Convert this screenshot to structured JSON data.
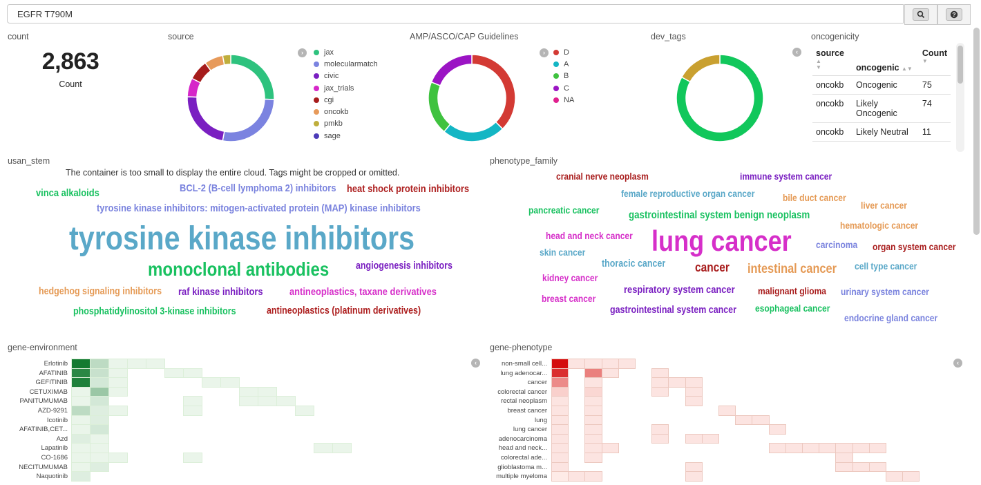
{
  "search": {
    "value": "EGFR T790M"
  },
  "toolbar": {
    "search_icon": "search-icon",
    "help_icon": "help-icon"
  },
  "panels": {
    "count": {
      "title": "count",
      "value": "2,863",
      "label": "Count"
    },
    "source": {
      "title": "source",
      "legend": [
        {
          "label": "jax",
          "color": "#2ec27e"
        },
        {
          "label": "molecularmatch",
          "color": "#7b83e0"
        },
        {
          "label": "civic",
          "color": "#7a1fc1"
        },
        {
          "label": "jax_trials",
          "color": "#d627c9"
        },
        {
          "label": "cgi",
          "color": "#a61c1c"
        },
        {
          "label": "oncokb",
          "color": "#e79a5a"
        },
        {
          "label": "pmkb",
          "color": "#bfae3c"
        },
        {
          "label": "sage",
          "color": "#4c3bb8"
        }
      ],
      "slices": [
        {
          "label": "jax",
          "value": 0.255,
          "color": "#2ec27e"
        },
        {
          "label": "molecularmatch",
          "value": 0.275,
          "color": "#7b83e0"
        },
        {
          "label": "civic",
          "value": 0.225,
          "color": "#7a1fc1"
        },
        {
          "label": "jax_trials",
          "value": 0.07,
          "color": "#d627c9"
        },
        {
          "label": "cgi",
          "value": 0.075,
          "color": "#a61c1c"
        },
        {
          "label": "oncokb",
          "value": 0.07,
          "color": "#e79a5a"
        },
        {
          "label": "pmkb",
          "value": 0.03,
          "color": "#bfae3c"
        }
      ]
    },
    "guidelines": {
      "title": "AMP/ASCO/CAP Guidelines",
      "legend": [
        {
          "label": "D",
          "color": "#d33a34"
        },
        {
          "label": "A",
          "color": "#14b6c4"
        },
        {
          "label": "B",
          "color": "#3fc23f"
        },
        {
          "label": "C",
          "color": "#9b14c4"
        },
        {
          "label": "NA",
          "color": "#e0208e"
        }
      ],
      "slices": [
        {
          "label": "D",
          "value": 0.375,
          "color": "#d33a34"
        },
        {
          "label": "A",
          "value": 0.235,
          "color": "#14b6c4"
        },
        {
          "label": "B",
          "value": 0.2,
          "color": "#3fc23f"
        },
        {
          "label": "C",
          "value": 0.19,
          "color": "#9b14c4"
        }
      ]
    },
    "dev_tags": {
      "title": "dev_tags",
      "slices": [
        {
          "label": "green",
          "value": 0.83,
          "color": "#11c75b"
        },
        {
          "label": "gold",
          "value": 0.17,
          "color": "#c9a030"
        }
      ]
    },
    "oncogenicity": {
      "title": "oncogenicity",
      "headers": [
        "source",
        "oncogenic",
        "Count"
      ],
      "rows": [
        [
          "oncokb",
          "Oncogenic",
          "75"
        ],
        [
          "oncokb",
          "Likely Oncogenic",
          "74"
        ],
        [
          "oncokb",
          "Likely Neutral",
          "11"
        ]
      ]
    },
    "usan_stem": {
      "title": "usan_stem",
      "message": "The container is too small to display the entire cloud. Tags might be cropped or omitted.",
      "tags": [
        {
          "text": "vinca alkaloids",
          "color": "#19c160"
        },
        {
          "text": "BCL-2 (B-cell lymphoma 2) inhibitors",
          "color": "#7a83de"
        },
        {
          "text": "heat shock protein inhibitors",
          "color": "#ad1f1f"
        },
        {
          "text": "tyrosine kinase inhibitors: mitogen-activated protein (MAP) kinase inhibitors",
          "color": "#7a83de"
        },
        {
          "text": "tyrosine kinase inhibitors",
          "color": "#5aa8c8"
        },
        {
          "text": "monoclonal antibodies",
          "color": "#19c160"
        },
        {
          "text": "angiogenesis inhibitors",
          "color": "#7a1fc1"
        },
        {
          "text": "hedgehog signaling inhibitors",
          "color": "#e59a55"
        },
        {
          "text": "raf kinase inhibitors",
          "color": "#7a1fc1"
        },
        {
          "text": "antineoplastics, taxane derivatives",
          "color": "#d62fc9"
        },
        {
          "text": "phosphatidylinositol 3-kinase inhibitors",
          "color": "#19c160"
        },
        {
          "text": "antineoplastics (platinum derivatives)",
          "color": "#ad1f1f"
        }
      ]
    },
    "phenotype_family": {
      "title": "phenotype_family",
      "tags": [
        {
          "text": "cranial nerve neoplasm",
          "color": "#a81c1c"
        },
        {
          "text": "immune system cancer",
          "color": "#7a1fc1"
        },
        {
          "text": "female reproductive organ cancer",
          "color": "#5aa8c8"
        },
        {
          "text": "bile duct cancer",
          "color": "#e59a55"
        },
        {
          "text": "liver cancer",
          "color": "#e59a55"
        },
        {
          "text": "pancreatic cancer",
          "color": "#19c160"
        },
        {
          "text": "gastrointestinal system benign neoplasm",
          "color": "#19c160"
        },
        {
          "text": "hematologic cancer",
          "color": "#e59a55"
        },
        {
          "text": "head and neck cancer",
          "color": "#d62fc9"
        },
        {
          "text": "lung cancer",
          "color": "#d62fc9"
        },
        {
          "text": "carcinoma",
          "color": "#7a83de"
        },
        {
          "text": "organ system cancer",
          "color": "#a81c1c"
        },
        {
          "text": "skin cancer",
          "color": "#5aa8c8"
        },
        {
          "text": "thoracic cancer",
          "color": "#5aa8c8"
        },
        {
          "text": "cancer",
          "color": "#a81c1c"
        },
        {
          "text": "intestinal cancer",
          "color": "#e59a55"
        },
        {
          "text": "cell type cancer",
          "color": "#5aa8c8"
        },
        {
          "text": "kidney cancer",
          "color": "#d62fc9"
        },
        {
          "text": "respiratory system cancer",
          "color": "#7a1fc1"
        },
        {
          "text": "malignant glioma",
          "color": "#a81c1c"
        },
        {
          "text": "urinary system cancer",
          "color": "#7a83de"
        },
        {
          "text": "breast cancer",
          "color": "#d62fc9"
        },
        {
          "text": "gastrointestinal system cancer",
          "color": "#7a1fc1"
        },
        {
          "text": "esophageal cancer",
          "color": "#19c160"
        },
        {
          "text": "endocrine gland cancer",
          "color": "#7a83de"
        }
      ]
    },
    "gene_environment": {
      "title": "gene-environment",
      "rows": [
        "Erlotinib",
        "AFATINIB",
        "GEFITINIB",
        "CETUXIMAB",
        "PANITUMUMAB",
        "AZD-9291",
        "Icotinib",
        "AFATINIB,CET...",
        "Azd",
        "Lapatinib",
        "CO-1686",
        "NECITUMUMAB",
        "Naquotinib"
      ],
      "cells": [
        [
          1.0,
          0.25,
          0.05,
          0.05,
          0.05,
          0,
          0,
          0,
          0,
          0,
          0,
          0,
          0,
          0,
          0
        ],
        [
          0.9,
          0.2,
          0.05,
          0,
          0,
          0.05,
          0.05,
          0,
          0,
          0,
          0,
          0,
          0,
          0,
          0
        ],
        [
          0.95,
          0.15,
          0.05,
          0,
          0,
          0,
          0,
          0.05,
          0.05,
          0,
          0,
          0,
          0,
          0,
          0
        ],
        [
          0.05,
          0.4,
          0.05,
          0,
          0,
          0,
          0,
          0,
          0,
          0.05,
          0.05,
          0,
          0,
          0,
          0
        ],
        [
          0.05,
          0.15,
          0,
          0,
          0,
          0,
          0.05,
          0,
          0,
          0.05,
          0.05,
          0.05,
          0,
          0,
          0
        ],
        [
          0.25,
          0.1,
          0.05,
          0,
          0,
          0,
          0.05,
          0,
          0,
          0,
          0,
          0,
          0.05,
          0,
          0
        ],
        [
          0.05,
          0.1,
          0,
          0,
          0,
          0,
          0,
          0,
          0,
          0,
          0,
          0,
          0,
          0,
          0
        ],
        [
          0.05,
          0.15,
          0,
          0,
          0,
          0,
          0,
          0,
          0,
          0,
          0,
          0,
          0,
          0,
          0
        ],
        [
          0.1,
          0.05,
          0,
          0,
          0,
          0,
          0,
          0,
          0,
          0,
          0,
          0,
          0,
          0,
          0
        ],
        [
          0.05,
          0.05,
          0,
          0,
          0,
          0,
          0,
          0,
          0,
          0,
          0,
          0,
          0,
          0.05,
          0.05
        ],
        [
          0.05,
          0.05,
          0.05,
          0,
          0,
          0,
          0.05,
          0,
          0,
          0,
          0,
          0,
          0,
          0,
          0
        ],
        [
          0.05,
          0.1,
          0,
          0,
          0,
          0,
          0,
          0,
          0,
          0,
          0,
          0,
          0,
          0,
          0
        ],
        [
          0.1,
          0,
          0,
          0,
          0,
          0,
          0,
          0,
          0,
          0,
          0,
          0,
          0,
          0,
          0
        ]
      ]
    },
    "gene_phenotype": {
      "title": "gene-phenotype",
      "rows": [
        "non-small cell...",
        "lung adenocar...",
        "cancer",
        "colorectal cancer",
        "rectal neoplasm",
        "breast cancer",
        "lung",
        "lung cancer",
        "adenocarcinoma",
        "head and neck...",
        "colorectal ade...",
        "glioblastoma m...",
        "multiple myeloma"
      ],
      "cells": [
        [
          1.0,
          0.06,
          0.06,
          0.06,
          0.06,
          0,
          0,
          0,
          0,
          0,
          0,
          0,
          0,
          0,
          0,
          0,
          0,
          0,
          0,
          0,
          0,
          0
        ],
        [
          0.85,
          0,
          0.5,
          0.06,
          0,
          0,
          0.06,
          0,
          0,
          0,
          0,
          0,
          0,
          0,
          0,
          0,
          0,
          0,
          0,
          0,
          0,
          0
        ],
        [
          0.45,
          0,
          0.06,
          0,
          0,
          0,
          0.06,
          0.06,
          0.06,
          0,
          0,
          0,
          0,
          0,
          0,
          0,
          0,
          0,
          0,
          0,
          0,
          0
        ],
        [
          0.15,
          0,
          0.12,
          0,
          0,
          0,
          0.06,
          0,
          0.06,
          0,
          0,
          0,
          0,
          0,
          0,
          0,
          0,
          0,
          0,
          0,
          0,
          0
        ],
        [
          0.06,
          0,
          0.06,
          0,
          0,
          0,
          0,
          0,
          0.06,
          0,
          0,
          0,
          0,
          0,
          0,
          0,
          0,
          0,
          0,
          0,
          0,
          0
        ],
        [
          0.06,
          0,
          0.06,
          0,
          0,
          0,
          0,
          0,
          0,
          0,
          0.06,
          0,
          0,
          0,
          0,
          0,
          0,
          0,
          0,
          0,
          0,
          0
        ],
        [
          0.06,
          0,
          0.06,
          0,
          0,
          0,
          0,
          0,
          0,
          0,
          0,
          0.06,
          0.06,
          0,
          0,
          0,
          0,
          0,
          0,
          0,
          0,
          0
        ],
        [
          0.06,
          0,
          0.06,
          0,
          0,
          0,
          0.06,
          0,
          0,
          0,
          0,
          0,
          0,
          0.06,
          0,
          0,
          0,
          0,
          0,
          0,
          0,
          0
        ],
        [
          0.06,
          0,
          0.06,
          0,
          0,
          0,
          0.06,
          0,
          0.06,
          0.06,
          0,
          0,
          0,
          0,
          0,
          0,
          0,
          0,
          0,
          0,
          0,
          0
        ],
        [
          0.06,
          0,
          0.06,
          0.06,
          0,
          0,
          0,
          0,
          0,
          0,
          0,
          0,
          0,
          0.06,
          0.06,
          0.06,
          0.06,
          0.06,
          0.06,
          0.06,
          0,
          0
        ],
        [
          0.06,
          0,
          0.06,
          0,
          0,
          0,
          0,
          0,
          0,
          0,
          0,
          0,
          0,
          0,
          0,
          0,
          0,
          0.06,
          0,
          0,
          0,
          0
        ],
        [
          0.06,
          0,
          0,
          0,
          0,
          0,
          0,
          0,
          0.06,
          0,
          0,
          0,
          0,
          0,
          0,
          0,
          0,
          0.06,
          0.06,
          0.06,
          0,
          0
        ],
        [
          0.03,
          0.06,
          0.06,
          0,
          0,
          0,
          0,
          0,
          0.06,
          0,
          0,
          0,
          0,
          0,
          0,
          0,
          0,
          0,
          0,
          0,
          0.06,
          0.06
        ]
      ]
    }
  }
}
